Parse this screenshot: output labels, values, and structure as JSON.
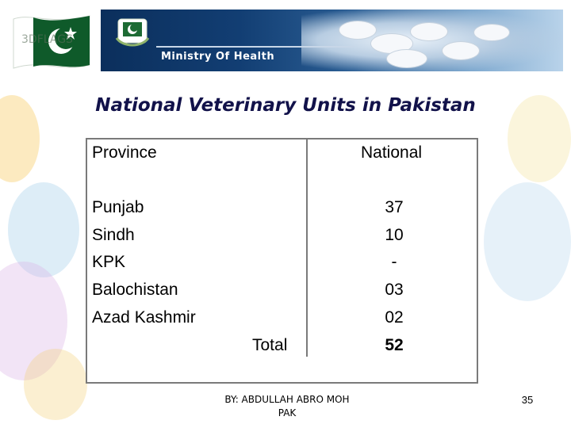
{
  "header": {
    "ministry_label": "Ministry Of Health",
    "flag_watermark": "3DFLAGS"
  },
  "title": "National Veterinary Units in Pakistan",
  "table": {
    "columns": [
      "Province",
      "National"
    ],
    "rows": [
      {
        "province": "Punjab",
        "national": "37"
      },
      {
        "province": "Sindh",
        "national": "10"
      },
      {
        "province": "KPK",
        "national": "-"
      },
      {
        "province": "Balochistan",
        "national": "03"
      },
      {
        "province": "Azad Kashmir",
        "national": "02"
      }
    ],
    "total_label": "Total",
    "total_value": "52"
  },
  "footer": {
    "credit_line1": "BY: ABDULLAH ABRO MOH",
    "credit_line2": "PAK",
    "slide_number": "35"
  },
  "colors": {
    "title": "#12124a",
    "flag_green": "#0f5a2a",
    "banner_dark": "#0b2f5c"
  }
}
